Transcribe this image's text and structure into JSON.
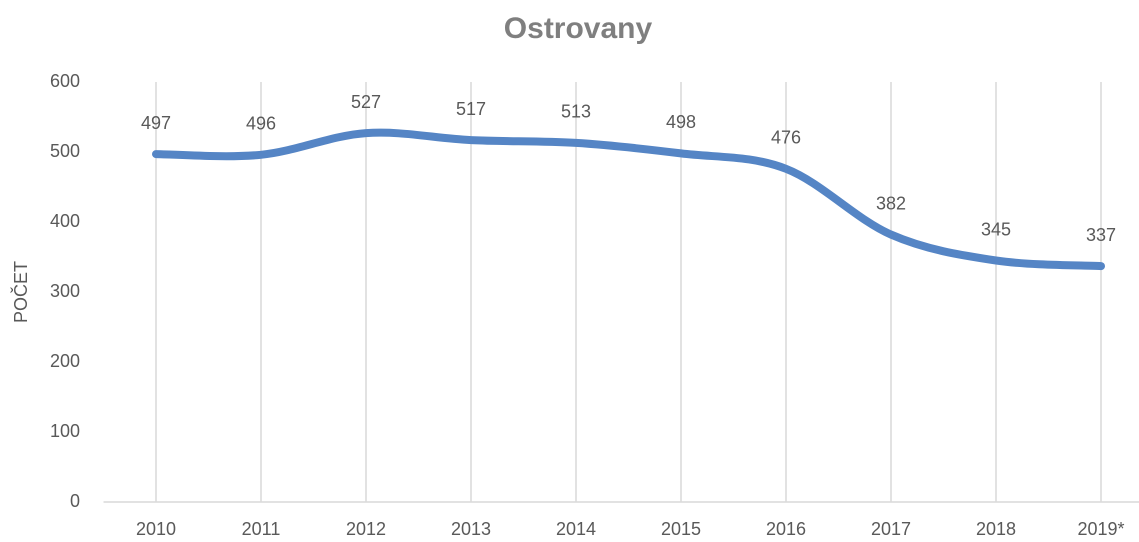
{
  "chart_data": {
    "type": "line",
    "title": "Ostrovany",
    "y_label": "POČET",
    "categories": [
      "2010",
      "2011",
      "2012",
      "2013",
      "2014",
      "2015",
      "2016",
      "2017",
      "2018",
      "2019*"
    ],
    "values": [
      497,
      496,
      527,
      517,
      513,
      498,
      476,
      382,
      345,
      337
    ],
    "color": "#5585c5",
    "smooth": true,
    "ylim": [
      0,
      600
    ],
    "yticks": [
      0,
      100,
      200,
      300,
      400,
      500,
      600
    ],
    "xgrid": true
  }
}
